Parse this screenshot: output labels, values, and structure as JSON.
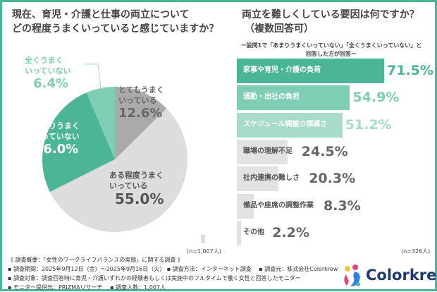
{
  "colors": {
    "accent": "#4db597",
    "light_teal": "#7fcdb5",
    "pale_teal": "#a6dcc9",
    "dark_gray": "#aaaaaa",
    "light_gray": "#dddddd",
    "bar_gray": "#e2e2e2",
    "text_gray": "#666666"
  },
  "chart_data": [
    {
      "type": "pie",
      "title": "現在、育児・介護と仕事の両立について どの程度うまくいっていると感じていますか？",
      "slices": [
        {
          "label": "とてもうまくいっている",
          "value": 12.6,
          "value_label": "12.6%",
          "color": "#aaaaaa"
        },
        {
          "label": "ある程度うまくいっている",
          "value": 55.0,
          "value_label": "55.0%",
          "color": "#dddddd"
        },
        {
          "label": "あまりうまくいっていない",
          "value": 26.0,
          "value_label": "26.0%",
          "color": "#4db597"
        },
        {
          "label": "全くうまくいっていない",
          "value": 6.4,
          "value_label": "6.4%",
          "color": "#7fcdb5"
        }
      ],
      "n": "(n=1,007人)"
    },
    {
      "type": "bar",
      "orientation": "horizontal",
      "title": "両立を難しくしている要因は何ですか？（複数回答可）",
      "subtitle": "ー設問1で「あまりうまくいっていない」「全くうまくいっていない」と回答した方が回答ー",
      "categories": [
        "家事や育児・介護の負荷",
        "通勤・出社の負担",
        "スケジュール調整の煩雑さ",
        "職場の理解不足",
        "社内連携の難しさ",
        "備品や座席の調整作業",
        "その他"
      ],
      "values": [
        71.5,
        54.9,
        51.2,
        24.5,
        20.3,
        8.3,
        2.2
      ],
      "value_labels": [
        "71.5%",
        "54.9%",
        "51.2%",
        "24.5%",
        "20.3%",
        "8.3%",
        "2.2%"
      ],
      "bar_colors": [
        "#4db597",
        "#7fcdb5",
        "#a6dcc9",
        "#e2e2e2",
        "#e2e2e2",
        "#e2e2e2",
        "#e2e2e2"
      ],
      "label_colors": [
        "#ffffff",
        "#ffffff",
        "#ffffff",
        "#555555",
        "#555555",
        "#555555",
        "#555555"
      ],
      "value_colors": [
        "#4db597",
        "#7fcdb5",
        "#a6dcc9",
        "#666666",
        "#666666",
        "#666666",
        "#666666"
      ],
      "xlim": [
        0,
        100
      ],
      "n": "(n=326人)"
    }
  ],
  "pie_labels": {
    "s0": [
      "とてもうまく",
      "いっている",
      "12.6%"
    ],
    "s1": [
      "ある程度うまく",
      "いっている",
      "55.0%"
    ],
    "s2": [
      "あまりうまく",
      "いっていない",
      "26.0%"
    ],
    "s3": [
      "全くうまく",
      "いっていない",
      "6.4%"
    ]
  },
  "pie_title_lines": [
    "現在、育児・介護と仕事の両立について",
    "どの程度うまくいっていると感じていますか？"
  ],
  "bar_title_lines": [
    "両立を難しくしている要因は何ですか？",
    "（複数回答可）"
  ],
  "bar_sub_lines": [
    "ー設問1で「あまりうまくいっていない」「全くうまくいっていない」と",
    "回答した方が回答ー"
  ],
  "footer": {
    "heading": "《 調査概要：「女性のワークライフバランスの実態」に関する調査 》",
    "line1": "▪ 調査期間：2025年9月12日（金）～2025年9月16日（火） ▪ 調査方法：インターネット調査　 ▪ 調査元：株式会社Colorkrew",
    "line2": "▪ 調査対象：調査回答時に育児・介護いずれかの経験者もしくは実施中のフルタイムで働く女性と回答したモニター",
    "line3": "▪ モニター提供元：PRIZMAリサーチ　 ▪ 調査人数：1,007人"
  },
  "logo": {
    "text": "Colorkrew"
  }
}
